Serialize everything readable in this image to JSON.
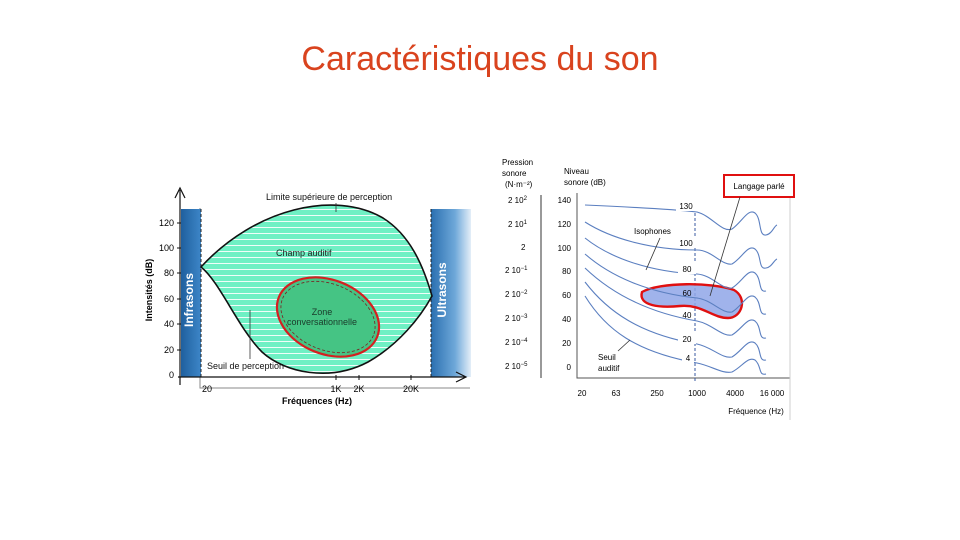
{
  "title": "Caractéristiques du son",
  "left_diagram": {
    "y_axis_label": "Intensités (dB)",
    "x_axis_label": "Fréquences (Hz)",
    "y_ticks": [
      "0",
      "20",
      "40",
      "60",
      "80",
      "100",
      "120"
    ],
    "x_ticks": [
      "20",
      "1K",
      "2K",
      "20K"
    ],
    "band_left": "Infrasons",
    "band_right": "Ultrasons",
    "upper_limit_label": "Limite supérieure de perception",
    "field_label": "Champ auditif",
    "zone_label_line1": "Zone",
    "zone_label_line2": "conversationnelle",
    "threshold_label": "Seuil de perception",
    "colors": {
      "field": "#5de6b8",
      "zone": "#3dbf7e",
      "band": "#2a6fb0",
      "outline": "#d42020"
    }
  },
  "right_diagram": {
    "pressure_header": [
      "Pression",
      "sonore",
      "(N·m⁻²)"
    ],
    "pressure_values": [
      {
        "base": "2  10",
        "exp": "2"
      },
      {
        "base": "2  10",
        "exp": "1"
      },
      {
        "base": "2",
        "exp": ""
      },
      {
        "base": "2  10",
        "exp": "−1"
      },
      {
        "base": "2  10",
        "exp": "−2"
      },
      {
        "base": "2  10",
        "exp": "−3"
      },
      {
        "base": "2  10",
        "exp": "−4"
      },
      {
        "base": "2  10",
        "exp": "−5"
      }
    ],
    "level_header": [
      "Niveau",
      "sonore (dB)"
    ],
    "level_ticks": [
      "140",
      "120",
      "100",
      "80",
      "60",
      "40",
      "20",
      "0"
    ],
    "curve_labels": [
      "130",
      "100",
      "80",
      "60",
      "40",
      "20",
      "4"
    ],
    "freq_ticks": [
      "20",
      "63",
      "250",
      "1000",
      "4000",
      "16 000"
    ],
    "freq_axis_label": "Fréquence (Hz)",
    "isophones_label": "Isophones",
    "threshold_label_line1": "Seuil",
    "threshold_label_line2": "auditif",
    "speech_label": "Langage parlé",
    "colors": {
      "curve": "#5b7fc0",
      "speech_fill": "#8fa6e8",
      "outline": "#e01010"
    }
  }
}
